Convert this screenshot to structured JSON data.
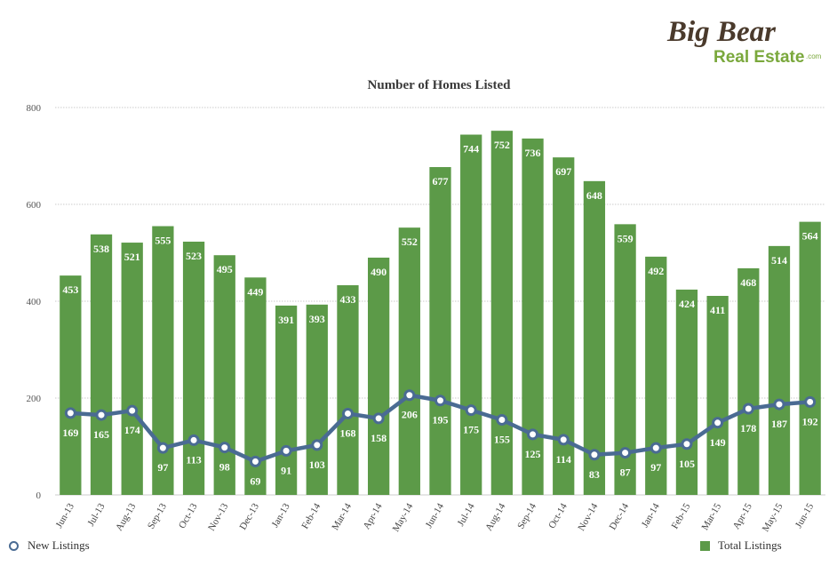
{
  "logo": {
    "line1": "Big Bear",
    "line2": "Real Estate",
    "suffix": ".com"
  },
  "chart_data": {
    "type": "bar",
    "title": "Number of Homes Listed",
    "xlabel": "",
    "ylabel": "",
    "ylim": [
      0,
      800
    ],
    "yticks": [
      0,
      200,
      400,
      600,
      800
    ],
    "grid": true,
    "legend_position": "bottom",
    "categories": [
      "Jun-13",
      "Jul-13",
      "Aug-13",
      "Sep-13",
      "Oct-13",
      "Nov-13",
      "Dec-13",
      "Jan-13",
      "Feb-14",
      "Mar-14",
      "Apr-14",
      "May-14",
      "Jun-14",
      "Jul-14",
      "Aug-14",
      "Sep-14",
      "Oct-14",
      "Nov-14",
      "Dec-14",
      "Jan-14",
      "Feb-15",
      "Mar-15",
      "Apr-15",
      "May-15",
      "Jun-15"
    ],
    "series": [
      {
        "name": "Total Listings",
        "type": "bar",
        "color": "#5c9a48",
        "values": [
          453,
          538,
          521,
          555,
          523,
          495,
          449,
          391,
          393,
          433,
          490,
          552,
          677,
          744,
          752,
          736,
          697,
          648,
          559,
          492,
          424,
          411,
          468,
          514,
          564
        ]
      },
      {
        "name": "New Listings",
        "type": "line",
        "color": "#4a6b93",
        "values": [
          169,
          165,
          174,
          97,
          113,
          98,
          69,
          91,
          103,
          168,
          158,
          206,
          195,
          175,
          155,
          125,
          114,
          83,
          87,
          97,
          105,
          149,
          178,
          187,
          192
        ]
      }
    ]
  }
}
